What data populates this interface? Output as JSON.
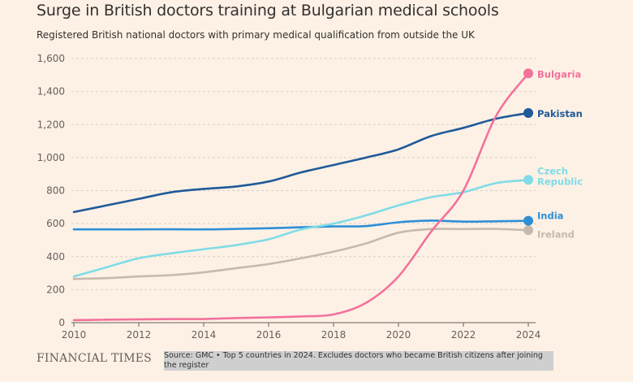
{
  "title": "Surge in British doctors training at Bulgarian medical schools",
  "subtitle": "Registered British national doctors with primary medical qualification from outside the UK",
  "brand": "FINANCIAL TIMES",
  "source": "Source: GMC • Top 5 countries in 2024. Excludes doctors who became British citizens after joining the register",
  "chart_data": {
    "type": "line",
    "x": [
      2010,
      2011,
      2012,
      2013,
      2014,
      2015,
      2016,
      2017,
      2018,
      2019,
      2020,
      2021,
      2022,
      2023,
      2024
    ],
    "x_ticks": [
      "2010",
      "2012",
      "2014",
      "2016",
      "2018",
      "2020",
      "2022",
      "2024"
    ],
    "y_ticks": [
      "0",
      "200",
      "400",
      "600",
      "800",
      "1,000",
      "1,200",
      "1,400",
      "1,600"
    ],
    "xlim": [
      2010,
      2024
    ],
    "ylim": [
      0,
      1600
    ],
    "grid": true,
    "legend": "direct labels at line ends (right)",
    "series": [
      {
        "name": "Bulgaria",
        "color": "#f2729c",
        "values": [
          15,
          18,
          20,
          22,
          22,
          28,
          32,
          38,
          50,
          120,
          280,
          550,
          800,
          1250,
          1510
        ]
      },
      {
        "name": "Pakistan",
        "color": "#1f5a99",
        "values": [
          670,
          710,
          750,
          790,
          810,
          825,
          855,
          910,
          955,
          1000,
          1050,
          1130,
          1180,
          1235,
          1270
        ]
      },
      {
        "name": "Czech Republic",
        "color": "#7fdce6",
        "values": [
          280,
          335,
          390,
          420,
          445,
          470,
          505,
          565,
          600,
          650,
          710,
          760,
          790,
          845,
          865
        ]
      },
      {
        "name": "India",
        "color": "#2e8fd6",
        "values": [
          565,
          565,
          565,
          566,
          565,
          568,
          572,
          578,
          583,
          585,
          608,
          618,
          612,
          614,
          617
        ]
      },
      {
        "name": "Ireland",
        "color": "#c6b9af",
        "values": [
          265,
          270,
          280,
          288,
          305,
          330,
          355,
          390,
          430,
          480,
          545,
          567,
          567,
          568,
          560
        ]
      }
    ]
  }
}
